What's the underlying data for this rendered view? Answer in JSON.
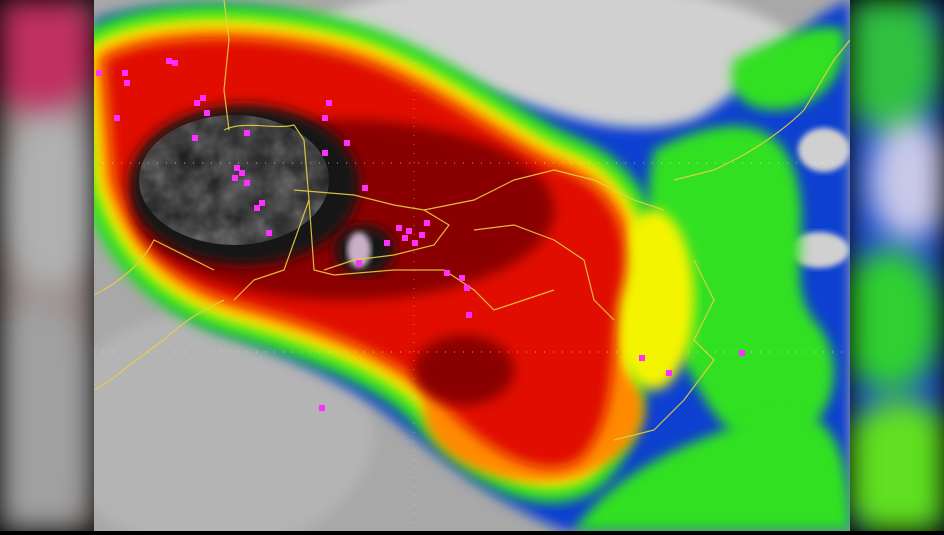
{
  "colors": {
    "clear_gray": "#a8a8a8",
    "light_gray": "#d0d0d0",
    "blue": "#1040d0",
    "green": "#30e020",
    "yellow": "#f4f400",
    "orange": "#ff8a00",
    "red": "#e00a00",
    "dark_red": "#8a0000",
    "core_black": "#151515",
    "core_gray": "#b8b8b8",
    "lightning_magenta": "#ff30ff",
    "border_yellow": "#e8d040"
  }
}
